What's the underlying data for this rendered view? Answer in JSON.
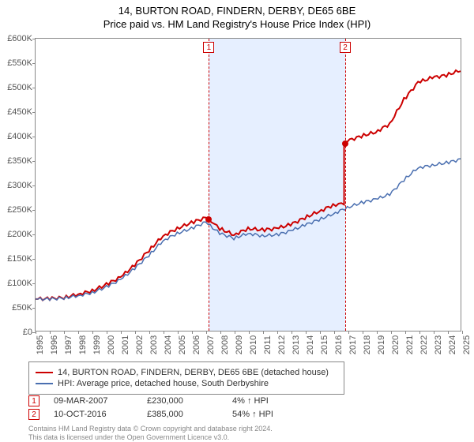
{
  "title": "14, BURTON ROAD, FINDERN, DERBY, DE65 6BE",
  "subtitle": "Price paid vs. HM Land Registry's House Price Index (HPI)",
  "chart": {
    "type": "line",
    "background_color": "#ffffff",
    "xlim": [
      1995,
      2025
    ],
    "ylim": [
      0,
      600000
    ],
    "ytick_step": 50000,
    "ytick_prefix": "£",
    "ytick_suffix": "K",
    "yticks": [
      0,
      50000,
      100000,
      150000,
      200000,
      250000,
      300000,
      350000,
      400000,
      450000,
      500000,
      550000,
      600000
    ],
    "xticks": [
      1995,
      1996,
      1997,
      1998,
      1999,
      2000,
      2001,
      2002,
      2003,
      2004,
      2005,
      2006,
      2007,
      2008,
      2009,
      2010,
      2011,
      2012,
      2013,
      2014,
      2015,
      2016,
      2017,
      2018,
      2019,
      2020,
      2021,
      2022,
      2023,
      2024,
      2025
    ],
    "series": [
      {
        "name": "property",
        "label": "14, BURTON ROAD, FINDERN, DERBY, DE65 6BE (detached house)",
        "color": "#cc0000",
        "line_width": 2,
        "points": [
          [
            1995,
            65000
          ],
          [
            1996,
            66000
          ],
          [
            1997,
            68000
          ],
          [
            1998,
            75000
          ],
          [
            1999,
            82000
          ],
          [
            2000,
            95000
          ],
          [
            2001,
            110000
          ],
          [
            2002,
            135000
          ],
          [
            2003,
            165000
          ],
          [
            2004,
            195000
          ],
          [
            2005,
            210000
          ],
          [
            2006,
            222000
          ],
          [
            2007,
            232000
          ],
          [
            2007.2,
            230000
          ],
          [
            2008,
            210000
          ],
          [
            2009,
            197000
          ],
          [
            2010,
            210000
          ],
          [
            2011,
            207000
          ],
          [
            2012,
            210000
          ],
          [
            2013,
            218000
          ],
          [
            2014,
            232000
          ],
          [
            2015,
            245000
          ],
          [
            2016,
            258000
          ],
          [
            2016.78,
            262000
          ],
          [
            2016.78,
            385000
          ],
          [
            2017,
            390000
          ],
          [
            2018,
            400000
          ],
          [
            2019,
            408000
          ],
          [
            2020,
            425000
          ],
          [
            2021,
            475000
          ],
          [
            2022,
            510000
          ],
          [
            2023,
            520000
          ],
          [
            2024,
            525000
          ],
          [
            2025,
            535000
          ]
        ]
      },
      {
        "name": "hpi",
        "label": "HPI: Average price, detached house, South Derbyshire",
        "color": "#4a6fb0",
        "line_width": 1.5,
        "points": [
          [
            1995,
            65000
          ],
          [
            1996,
            65000
          ],
          [
            1997,
            67000
          ],
          [
            1998,
            72000
          ],
          [
            1999,
            78000
          ],
          [
            2000,
            90000
          ],
          [
            2001,
            105000
          ],
          [
            2002,
            128000
          ],
          [
            2003,
            155000
          ],
          [
            2004,
            185000
          ],
          [
            2005,
            200000
          ],
          [
            2006,
            210000
          ],
          [
            2007,
            223000
          ],
          [
            2008,
            200000
          ],
          [
            2009,
            190000
          ],
          [
            2010,
            200000
          ],
          [
            2011,
            195000
          ],
          [
            2012,
            197000
          ],
          [
            2013,
            205000
          ],
          [
            2014,
            217000
          ],
          [
            2015,
            228000
          ],
          [
            2016,
            240000
          ],
          [
            2017,
            253000
          ],
          [
            2018,
            263000
          ],
          [
            2019,
            270000
          ],
          [
            2020,
            280000
          ],
          [
            2021,
            310000
          ],
          [
            2022,
            335000
          ],
          [
            2023,
            340000
          ],
          [
            2024,
            345000
          ],
          [
            2025,
            352000
          ]
        ]
      }
    ],
    "sale_markers": [
      {
        "num": "1",
        "date_label": "09-MAR-2007",
        "x": 2007.19,
        "price": 230000,
        "price_label": "£230,000",
        "pct_label": "4% ↑ HPI"
      },
      {
        "num": "2",
        "date_label": "10-OCT-2016",
        "x": 2016.78,
        "price": 385000,
        "price_label": "£385,000",
        "pct_label": "54% ↑ HPI"
      }
    ],
    "band_color": "#e6efff",
    "marker_color": "#cc0000",
    "axis_color": "#888888",
    "label_fontsize": 11
  },
  "footer": {
    "line1": "Contains HM Land Registry data © Crown copyright and database right 2024.",
    "line2": "This data is licensed under the Open Government Licence v3.0."
  }
}
